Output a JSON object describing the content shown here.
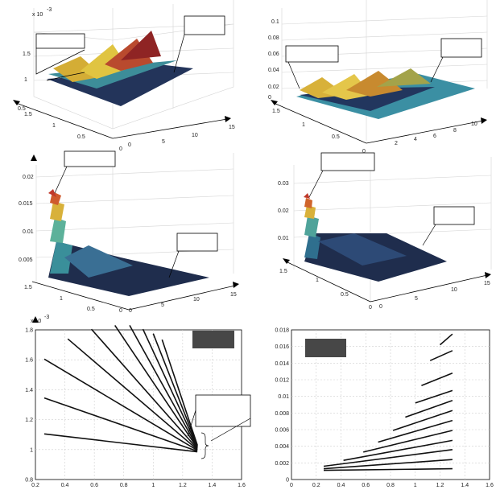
{
  "colors": {
    "dark": "#1e2a4a",
    "mid": "#3a8f9a",
    "warm": "#d8b13a",
    "hot": "#c0392b",
    "grid": "#d4d4d4",
    "redacted": "#474747"
  },
  "panel_a": {
    "exponent": "x 10",
    "exponent_power": "-3",
    "z_ticks": [
      "1",
      "1.5"
    ],
    "left_ticks": [
      "1.5",
      "1",
      "0.5",
      "0"
    ],
    "right_ticks": [
      "0",
      "5",
      "10",
      "15"
    ],
    "left_extra": "0.5"
  },
  "panel_b": {
    "z_ticks": [
      "0",
      "0.02",
      "0.04",
      "0.06",
      "0.08",
      "0.1"
    ],
    "left_ticks": [
      "1.5",
      "1",
      "0.5",
      "0"
    ],
    "right_ticks": [
      "2",
      "4",
      "6",
      "8",
      "10"
    ]
  },
  "panel_c": {
    "z_ticks": [
      "0.005",
      "0.01",
      "0.015",
      "0.02"
    ],
    "left_ticks": [
      "1.5",
      "1",
      "0.5",
      "0"
    ],
    "right_ticks": [
      "0",
      "5",
      "10",
      "15"
    ]
  },
  "panel_d": {
    "z_ticks": [
      "0.01",
      "0.02",
      "0.03"
    ],
    "left_ticks": [
      "1.5",
      "1",
      "0.5",
      "0"
    ],
    "right_ticks": [
      "0",
      "5",
      "10",
      "15"
    ]
  },
  "chart_data": [
    {
      "type": "line",
      "exponent": "x 10",
      "exponent_power": "-3",
      "xlim": [
        0.2,
        1.6
      ],
      "ylim": [
        0.8,
        1.8
      ],
      "x_ticks": [
        "0.2",
        "0.4",
        "0.6",
        "0.8",
        "1",
        "1.2",
        "1.4",
        "1.6"
      ],
      "y_ticks": [
        "0.8",
        "1",
        "1.2",
        "1.4",
        "1.6",
        "1.8"
      ],
      "series": [
        {
          "values": [
            [
              0.26,
              1.105
            ],
            [
              1.3,
              0.985
            ]
          ]
        },
        {
          "values": [
            [
              0.26,
              1.345
            ],
            [
              1.3,
              0.99
            ]
          ]
        },
        {
          "values": [
            [
              0.26,
              1.605
            ],
            [
              1.3,
              0.995
            ]
          ]
        },
        {
          "values": [
            [
              0.42,
              1.74
            ],
            [
              1.3,
              1.0
            ]
          ]
        },
        {
          "values": [
            [
              0.58,
              1.805
            ],
            [
              1.3,
              1.005
            ]
          ]
        },
        {
          "values": [
            [
              0.74,
              1.83
            ],
            [
              1.3,
              1.01
            ]
          ]
        },
        {
          "values": [
            [
              0.84,
              1.83
            ],
            [
              1.3,
              1.015
            ]
          ]
        },
        {
          "values": [
            [
              0.93,
              1.805
            ],
            [
              1.3,
              1.02
            ]
          ]
        },
        {
          "values": [
            [
              1.0,
              1.775
            ],
            [
              1.3,
              1.025
            ]
          ]
        },
        {
          "values": [
            [
              1.06,
              1.735
            ],
            [
              1.3,
              1.03
            ]
          ]
        }
      ]
    },
    {
      "type": "line",
      "xlim": [
        0,
        1.6
      ],
      "ylim": [
        0,
        0.018
      ],
      "x_ticks": [
        "0",
        "0.2",
        "0.4",
        "0.6",
        "0.8",
        "1",
        "1.2",
        "1.4",
        "1.6"
      ],
      "y_ticks": [
        "0",
        "0.002",
        "0.004",
        "0.006",
        "0.008",
        "0.01",
        "0.012",
        "0.014",
        "0.016",
        "0.018"
      ],
      "series": [
        {
          "values": [
            [
              0.26,
              0.0011
            ],
            [
              1.3,
              0.0013
            ]
          ]
        },
        {
          "values": [
            [
              0.26,
              0.0013
            ],
            [
              1.3,
              0.0024
            ]
          ]
        },
        {
          "values": [
            [
              0.26,
              0.0016
            ],
            [
              1.3,
              0.0036
            ]
          ]
        },
        {
          "values": [
            [
              0.42,
              0.0023
            ],
            [
              1.3,
              0.0047
            ]
          ]
        },
        {
          "values": [
            [
              0.58,
              0.0033
            ],
            [
              1.3,
              0.0059
            ]
          ]
        },
        {
          "values": [
            [
              0.7,
              0.0045
            ],
            [
              1.3,
              0.0071
            ]
          ]
        },
        {
          "values": [
            [
              0.82,
              0.0059
            ],
            [
              1.3,
              0.0083
            ]
          ]
        },
        {
          "values": [
            [
              0.92,
              0.0075
            ],
            [
              1.3,
              0.0095
            ]
          ]
        },
        {
          "values": [
            [
              1.0,
              0.0092
            ],
            [
              1.3,
              0.0107
            ]
          ]
        },
        {
          "values": [
            [
              1.05,
              0.0113
            ],
            [
              1.3,
              0.0128
            ]
          ]
        },
        {
          "values": [
            [
              1.12,
              0.0143
            ],
            [
              1.3,
              0.0155
            ]
          ]
        },
        {
          "values": [
            [
              1.2,
              0.0162
            ],
            [
              1.3,
              0.0175
            ]
          ]
        }
      ]
    }
  ]
}
